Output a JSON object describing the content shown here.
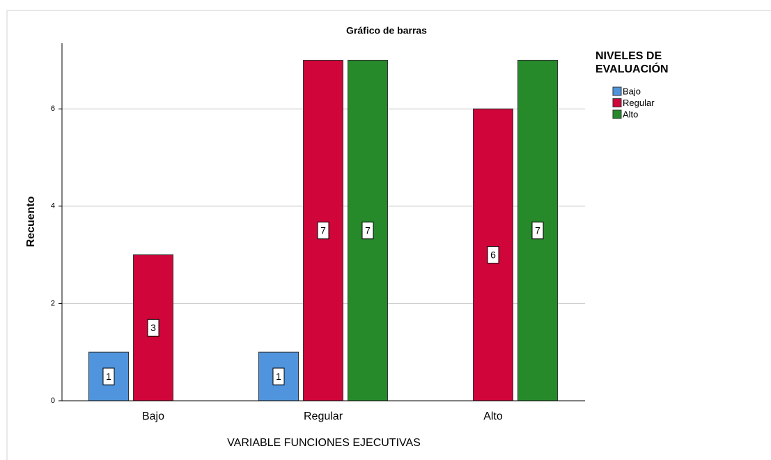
{
  "chart_data": {
    "type": "bar",
    "title": "Gráfico de barras",
    "x_label": "VARIABLE FUNCIONES EJECUTIVAS",
    "y_label": "Recuento",
    "legend_title": [
      "NIVELES DE",
      "EVALUACIÓN"
    ],
    "categories": [
      "Bajo",
      "Regular",
      "Alto"
    ],
    "series": [
      {
        "name": "Bajo",
        "color": "#4f94dc",
        "values": [
          1,
          1,
          null
        ]
      },
      {
        "name": "Regular",
        "color": "#d0053a",
        "values": [
          3,
          7,
          6
        ]
      },
      {
        "name": "Alto",
        "color": "#268a2a",
        "values": [
          null,
          7,
          7
        ]
      }
    ],
    "ylim": [
      0,
      7.35
    ],
    "yticks": [
      0,
      2,
      4,
      6
    ],
    "grid": true,
    "legend": "right"
  }
}
